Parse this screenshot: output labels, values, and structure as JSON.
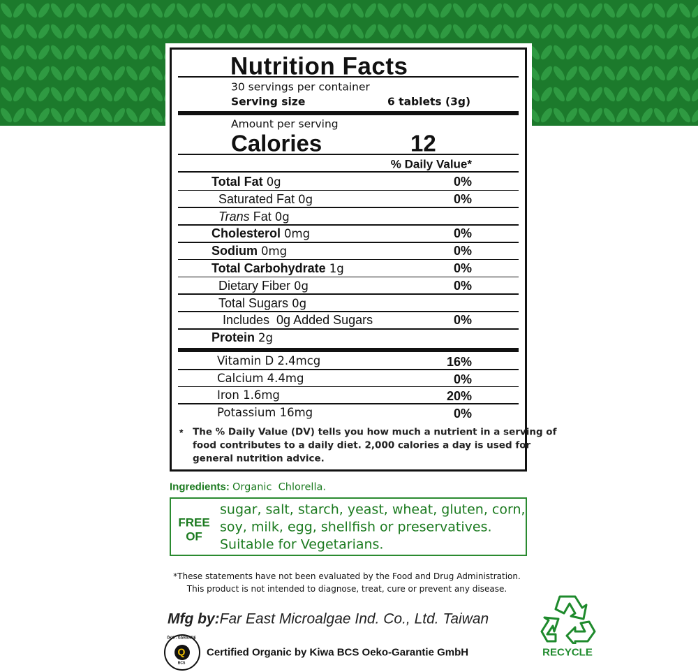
{
  "nutrition_facts": {
    "title": "Nutrition Facts",
    "servings_per_container": "30 servings per container",
    "serving_size_label": "Serving size",
    "serving_size": "6 tablets (3g)",
    "amount_per_serving": "Amount per serving",
    "calories_label": "Calories",
    "calories": 12,
    "daily_value_header": "% Daily Value*",
    "rows": [
      {
        "name": "Total Fat",
        "amount": "0g",
        "dv": "0%",
        "bold": true,
        "level": 0
      },
      {
        "name": "Saturated Fat",
        "amount": "0g",
        "dv": "0%",
        "bold": false,
        "level": 1
      },
      {
        "italic_prefix": "Trans",
        "name": "Fat",
        "amount": "0g",
        "bold": false,
        "level": 1
      },
      {
        "name": "Cholesterol",
        "amount": "0mg",
        "dv": "0%",
        "bold": true,
        "level": 0
      },
      {
        "name": "Sodium",
        "amount": "0mg",
        "dv": "0%",
        "bold": true,
        "level": 0
      },
      {
        "name": "Total Carbohydrate",
        "amount": "1g",
        "dv": "0%",
        "bold": true,
        "level": 0
      },
      {
        "name": "Dietary Fiber",
        "amount": "0g",
        "dv": "0%",
        "bold": false,
        "level": 1
      },
      {
        "name": "Total Sugars",
        "amount": "0g",
        "bold": false,
        "level": 1
      },
      {
        "name": "Includes  0g Added Sugars",
        "dv": "0%",
        "bold": false,
        "level": 2
      },
      {
        "name": "Protein",
        "amount": "2g",
        "bold": true,
        "level": 0
      }
    ],
    "vitamins": [
      {
        "name": "Vitamin D",
        "amount": "2.4mcg",
        "dv": "16%"
      },
      {
        "name": "Calcium",
        "amount": "4.4mg",
        "dv": "0%"
      },
      {
        "name": "Iron",
        "amount": "1.6mg",
        "dv": "20%"
      },
      {
        "name": "Potassium",
        "amount": "16mg",
        "dv": "0%"
      }
    ],
    "footnote_mark": "*",
    "footnote_lines": [
      "The % Daily Value (DV) tells you how much a nutrient in a serving of",
      "food contributes to a daily diet. 2,000 calories a day is used for",
      "general nutrition advice."
    ]
  },
  "ingredients": {
    "label": "Ingredients:",
    "text": "Organic  Chlorella."
  },
  "free_of": {
    "label_lines": [
      "FREE",
      "OF"
    ],
    "text_lines": [
      "sugar, salt, starch, yeast, wheat, gluten, corn,",
      "soy, milk, egg, shellfish or preservatives.",
      "Suitable for Vegetarians."
    ]
  },
  "disclaimer_lines": [
    "*These statements have not been evaluated by the Food and Drug Administration.",
    "This product is not intended to diagnose, treat, cure or prevent any disease."
  ],
  "manufacturer": {
    "label": "Mfg by:",
    "name": "Far East Microalgae Ind. Co., Ltd. Taiwan"
  },
  "certification": {
    "badge_top": "ÖKO - GARANTIE",
    "badge_center": "Q",
    "badge_bottom": "BCS",
    "text": "Certified Organic by Kiwa BCS Oeko-Garantie GmbH"
  },
  "recycle": "RECYCLE"
}
